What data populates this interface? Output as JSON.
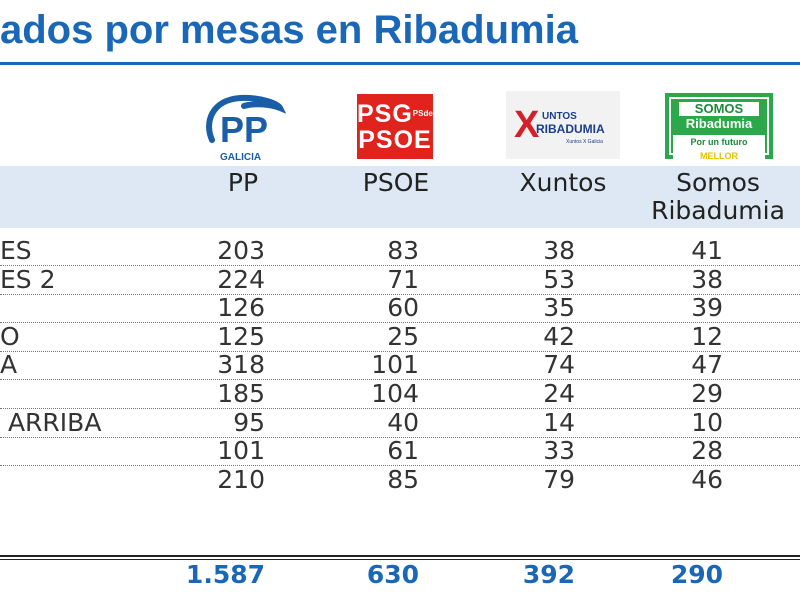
{
  "title": "ados por mesas en Ribadumia",
  "colors": {
    "accent": "#1a67b8",
    "header_band": "#dde8f4",
    "pp": "#1b5ea8",
    "psoe": "#e0231c",
    "somos": "#2aa84a"
  },
  "logos": {
    "pp": {
      "mark": "PP",
      "sub": "GALICIA"
    },
    "psoe": {
      "line1": "PSG",
      "line2": "PSOE",
      "sup": "PSdeG"
    },
    "xuntos": {
      "x": "X",
      "top": "UNTOS",
      "main": "RIBADUMIA",
      "sub": "Xuntos X Galicia"
    },
    "somos": {
      "top": "SOMOS",
      "main": "Ribadumia",
      "tag_a": "Por un futuro",
      "tag_b": "MELLOR"
    }
  },
  "chart_data": {
    "type": "table",
    "title": "ados por mesas en Ribadumia",
    "columns": [
      "PP",
      "PSOE",
      "Xuntos",
      "Somos Ribadumia"
    ],
    "column_heads": [
      {
        "line1": "PP",
        "line2": ""
      },
      {
        "line1": "PSOE",
        "line2": ""
      },
      {
        "line1": "Xuntos",
        "line2": ""
      },
      {
        "line1": "Somos",
        "line2": "Ribadumia"
      }
    ],
    "rows": [
      {
        "label": "ES",
        "values": [
          "203",
          "83",
          "38",
          "41"
        ]
      },
      {
        "label": "ES 2",
        "values": [
          "224",
          "71",
          "53",
          "38"
        ]
      },
      {
        "label": "",
        "values": [
          "126",
          "60",
          "35",
          "39"
        ]
      },
      {
        "label": "O",
        "values": [
          "125",
          "25",
          "42",
          "12"
        ]
      },
      {
        "label": "A",
        "values": [
          "318",
          "101",
          "74",
          "47"
        ]
      },
      {
        "label": "",
        "values": [
          "185",
          "104",
          "24",
          "29"
        ]
      },
      {
        "label": " ARRIBA",
        "values": [
          "95",
          "40",
          "14",
          "10"
        ]
      },
      {
        "label": "",
        "values": [
          "101",
          "61",
          "33",
          "28"
        ]
      },
      {
        "label": "",
        "values": [
          "210",
          "85",
          "79",
          "46"
        ]
      }
    ],
    "totals": [
      "1.587",
      "630",
      "392",
      "290"
    ]
  }
}
